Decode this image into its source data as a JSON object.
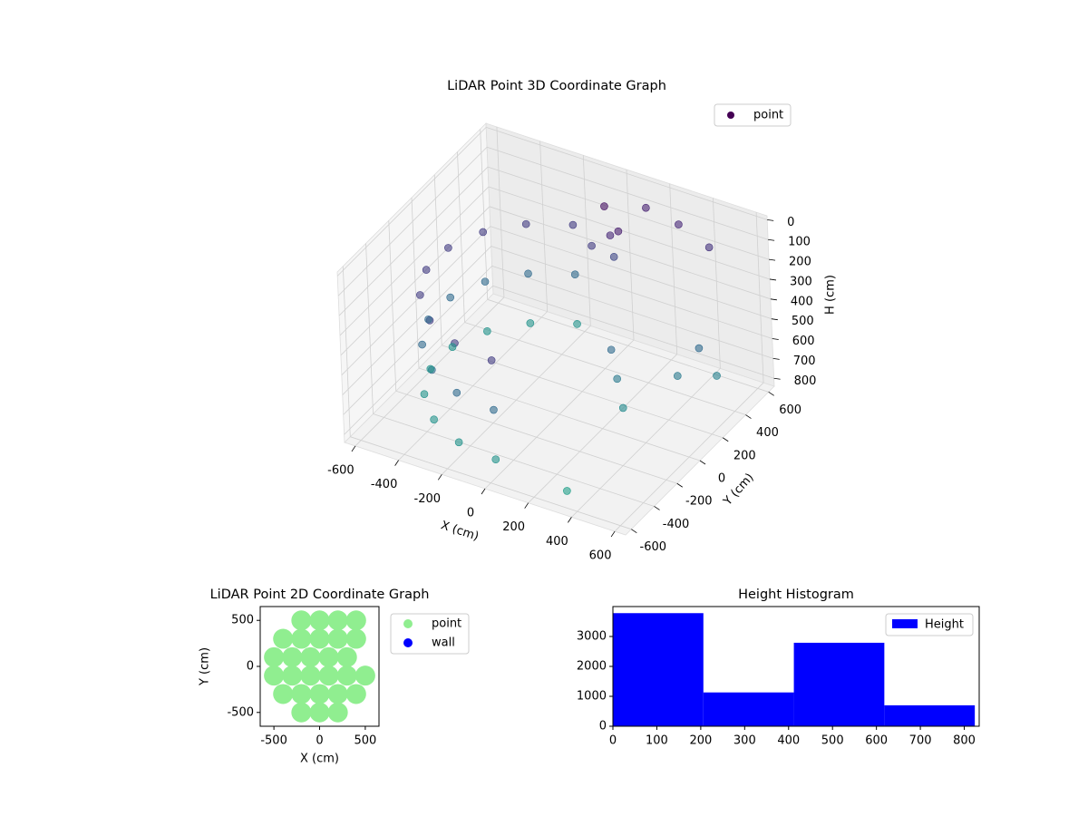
{
  "chart_data": [
    {
      "type": "scatter3d",
      "title": "LiDAR Point 3D Coordinate Graph",
      "xlabel": "X (cm)",
      "ylabel": "Y (cm)",
      "zlabel": "H (cm)",
      "xlim": [
        -650,
        650
      ],
      "ylim": [
        -650,
        650
      ],
      "zlim": [
        -20,
        840
      ],
      "z_inverted": true,
      "xticks": [
        -600,
        -400,
        -200,
        0,
        200,
        400,
        600
      ],
      "yticks": [
        -600,
        -400,
        -200,
        0,
        200,
        400,
        600
      ],
      "zticks": [
        0,
        100,
        200,
        300,
        400,
        500,
        600,
        700,
        800
      ],
      "grid": true,
      "legend": "upper right",
      "colormap": "viridis",
      "series": [
        {
          "name": "point",
          "color": "#440154",
          "x": [
            -188,
            -354,
            -476,
            -542,
            -542,
            -476,
            -354,
            -188,
            0,
            -188,
            -354,
            -476,
            -542,
            -542,
            -476,
            -354,
            -188,
            0,
            -188,
            -354,
            -476,
            -542,
            -542,
            -476,
            -354,
            -188,
            0,
            0,
            50,
            -50,
            100,
            30,
            100,
            250,
            400,
            500,
            450,
            550,
            200,
            300,
            250,
            300
          ],
          "y": [
            517,
            421,
            275,
            96,
            -96,
            -275,
            -421,
            -517,
            -550,
            517,
            421,
            275,
            96,
            -96,
            -275,
            -421,
            -517,
            -550,
            517,
            421,
            275,
            96,
            -96,
            -275,
            -421,
            -517,
            -550,
            450,
            400,
            420,
            380,
            460,
            620,
            620,
            600,
            300,
            200,
            350,
            100,
            0,
            50,
            -500
          ],
          "z": [
            250,
            250,
            250,
            250,
            250,
            250,
            250,
            250,
            250,
            500,
            500,
            500,
            500,
            500,
            500,
            500,
            500,
            500,
            750,
            750,
            750,
            750,
            750,
            750,
            750,
            750,
            750,
            50,
            150,
            250,
            100,
            300,
            120,
            150,
            200,
            500,
            600,
            650,
            500,
            700,
            600,
            830
          ]
        }
      ]
    },
    {
      "type": "scatter",
      "title": "LiDAR Point 2D Coordinate Graph",
      "xlabel": "X (cm)",
      "ylabel": "Y (cm)",
      "xlim": [
        -650,
        650
      ],
      "ylim": [
        -650,
        650
      ],
      "xticks": [
        -500,
        0,
        500
      ],
      "yticks": [
        -500,
        0,
        500
      ],
      "legend": "outside right",
      "series": [
        {
          "name": "point",
          "color": "#90ee90",
          "x": [
            -200,
            0,
            200,
            -400,
            -200,
            0,
            200,
            400,
            -500,
            -300,
            -100,
            100,
            300,
            500,
            -500,
            -300,
            -100,
            100,
            300,
            -400,
            -200,
            0,
            200,
            400,
            -200,
            0,
            200,
            400
          ],
          "y": [
            -500,
            -500,
            -500,
            -300,
            -300,
            -300,
            -300,
            -300,
            -100,
            -100,
            -100,
            -100,
            -100,
            -100,
            100,
            100,
            100,
            100,
            100,
            300,
            300,
            300,
            300,
            300,
            500,
            500,
            500,
            500
          ]
        },
        {
          "name": "wall",
          "color": "#0000ff",
          "x": [],
          "y": []
        }
      ]
    },
    {
      "type": "histogram",
      "title": "Height Histogram",
      "bins": [
        0,
        206,
        412,
        618,
        824
      ],
      "counts": [
        3780,
        1130,
        2790,
        700
      ],
      "xlim": [
        0,
        834
      ],
      "ylim": [
        0,
        4000
      ],
      "xticks": [
        0,
        100,
        200,
        300,
        400,
        500,
        600,
        700,
        800
      ],
      "yticks": [
        0,
        1000,
        2000,
        3000
      ],
      "series_name": "Height",
      "color": "#0000ff",
      "legend": "upper right"
    }
  ]
}
